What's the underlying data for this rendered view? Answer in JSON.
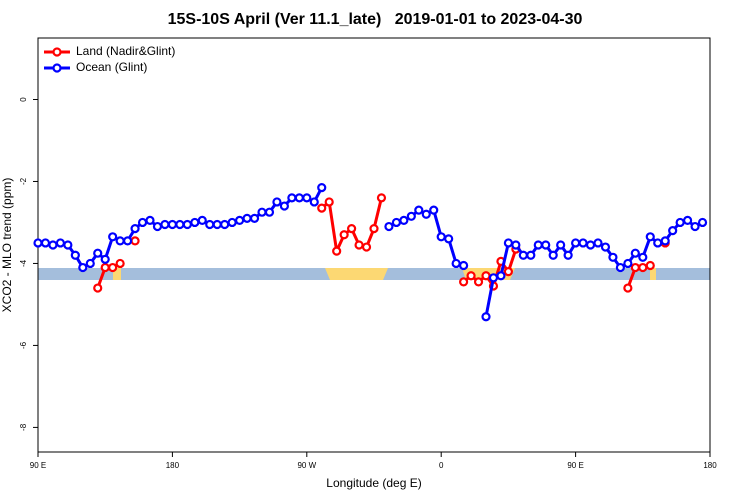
{
  "chart_data": {
    "type": "line",
    "title": "15S-10S April (Ver 11.1_late)   2019-01-01 to 2023-04-30",
    "xlabel": "Longitude (deg E)",
    "ylabel": "XCO2 - MLO trend (ppm)",
    "xlim": [
      90,
      540
    ],
    "ylim": [
      -8.6,
      1.5
    ],
    "xticks": [
      {
        "value": 90,
        "label": "90 E"
      },
      {
        "value": 180,
        "label": "180"
      },
      {
        "value": 270,
        "label": "90 W"
      },
      {
        "value": 360,
        "label": "0"
      },
      {
        "value": 450,
        "label": "90 E"
      },
      {
        "value": 540,
        "label": "180"
      }
    ],
    "yticks": [
      0,
      -2,
      -4,
      -6,
      -8
    ],
    "legend": "top-left",
    "series": [
      {
        "name": "Land (Nadir&Glint)",
        "color": "#ff0000",
        "x": [
          130,
          135,
          140,
          145,
          150,
          155,
          160,
          280,
          285,
          290,
          295,
          300,
          305,
          310,
          315,
          320,
          325,
          375,
          380,
          385,
          390,
          395,
          400,
          405,
          410,
          415,
          485,
          490,
          495,
          500,
          505,
          510
        ],
        "values": [
          -4.6,
          -4.1,
          -4.1,
          -4.0,
          null,
          -3.45,
          null,
          -2.65,
          -2.5,
          -3.7,
          -3.3,
          -3.15,
          -3.55,
          -3.6,
          -3.15,
          -2.4,
          null,
          -4.45,
          -4.3,
          -4.45,
          -4.3,
          -4.55,
          -3.95,
          -4.2,
          -3.65,
          null,
          -4.6,
          -4.1,
          -4.1,
          -4.05,
          null,
          -3.5
        ]
      },
      {
        "name": "Ocean (Glint)",
        "color": "#0000ff",
        "x": [
          90,
          95,
          100,
          105,
          110,
          115,
          120,
          125,
          130,
          135,
          140,
          145,
          150,
          155,
          160,
          165,
          170,
          175,
          180,
          185,
          190,
          195,
          200,
          205,
          210,
          215,
          220,
          225,
          230,
          235,
          240,
          245,
          250,
          255,
          260,
          265,
          270,
          275,
          280,
          285,
          290,
          295,
          300,
          305,
          310,
          315,
          320,
          325,
          330,
          335,
          340,
          345,
          350,
          355,
          360,
          365,
          370,
          375,
          380,
          385,
          390,
          395,
          400,
          405,
          410,
          415,
          420,
          425,
          430,
          435,
          440,
          445,
          450,
          455,
          460,
          465,
          470,
          475,
          480,
          485,
          490,
          495,
          500,
          505,
          510,
          515,
          520,
          525,
          530,
          535
        ],
        "values": [
          -3.5,
          -3.5,
          -3.55,
          -3.5,
          -3.55,
          -3.8,
          -4.1,
          -4.0,
          -3.75,
          -3.9,
          -3.35,
          -3.45,
          -3.45,
          -3.15,
          -3.0,
          -2.95,
          -3.1,
          -3.05,
          -3.05,
          -3.05,
          -3.05,
          -3.0,
          -2.95,
          -3.05,
          -3.05,
          -3.05,
          -3.0,
          -2.95,
          -2.9,
          -2.9,
          -2.75,
          -2.75,
          -2.5,
          -2.6,
          -2.4,
          -2.4,
          -2.4,
          -2.5,
          -2.15,
          null,
          null,
          null,
          null,
          null,
          null,
          null,
          null,
          -3.1,
          -3.0,
          -2.95,
          -2.85,
          -2.7,
          -2.8,
          -2.7,
          -3.35,
          -3.4,
          -4.0,
          -4.05,
          null,
          null,
          -5.3,
          -4.35,
          -4.3,
          -3.5,
          -3.55,
          -3.8,
          -3.8,
          -3.55,
          -3.55,
          -3.8,
          -3.55,
          -3.8,
          -3.5,
          -3.5,
          -3.55,
          -3.5,
          -3.6,
          -3.85,
          -4.1,
          -4.0,
          -3.75,
          -3.85,
          -3.35,
          -3.5,
          -3.45,
          -3.2,
          -3.0,
          -2.95,
          -3.1,
          -3.0
        ]
      }
    ]
  }
}
